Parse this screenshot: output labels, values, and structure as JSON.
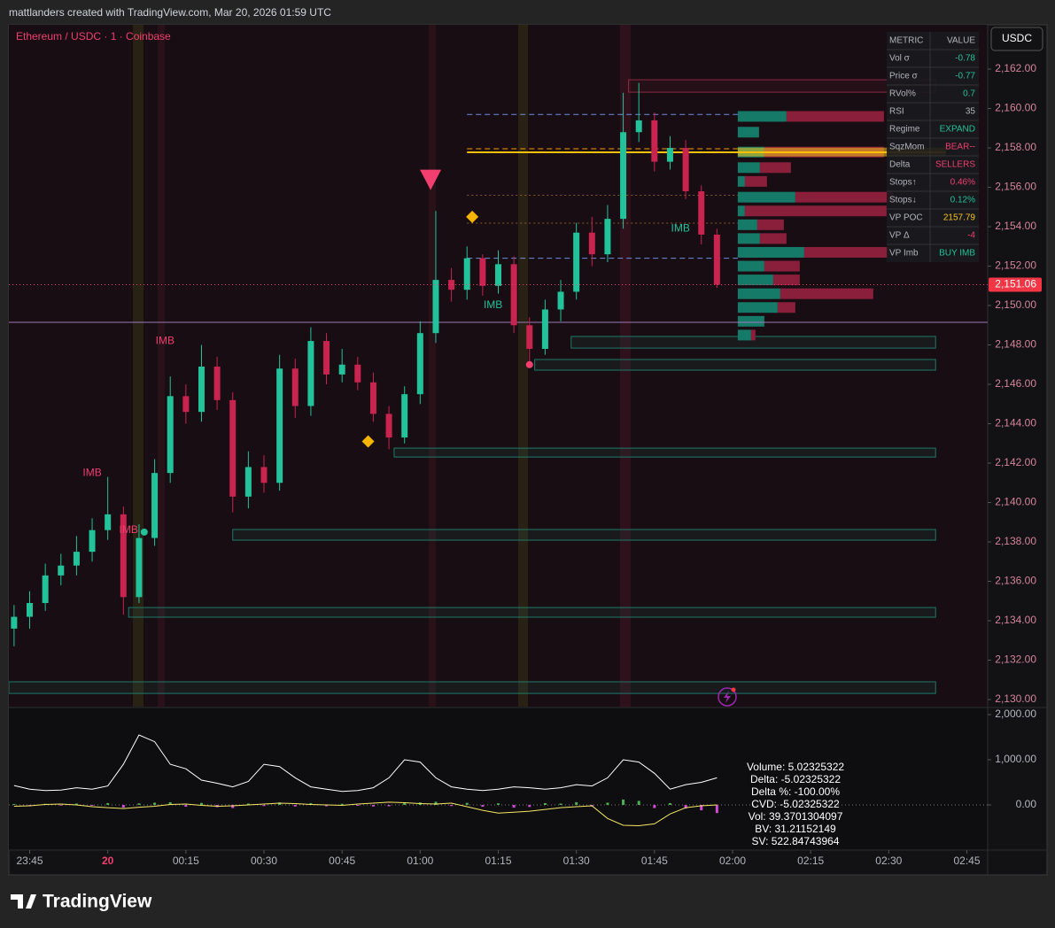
{
  "header": {
    "attribution": "mattlanders created with TradingView.com, Mar 20, 2026 01:59 UTC",
    "symbol": "Ethereum / USDC · 1 · Coinbase",
    "currency": "USDC",
    "logo": "TradingView"
  },
  "chart_data": [
    {
      "type": "candlestick",
      "x": [
        "23:42",
        "23:45",
        "23:48",
        "23:51",
        "23:54",
        "23:57",
        "00:00",
        "00:03",
        "00:06",
        "00:09",
        "00:12",
        "00:15",
        "00:18",
        "00:21",
        "00:24",
        "00:27",
        "00:30",
        "00:33",
        "00:36",
        "00:39",
        "00:42",
        "00:45",
        "00:48",
        "00:51",
        "00:54",
        "00:57",
        "01:00",
        "01:03",
        "01:06",
        "01:09",
        "01:12",
        "01:15",
        "01:18",
        "01:21",
        "01:24",
        "01:27",
        "01:30",
        "01:33",
        "01:36",
        "01:39",
        "01:42",
        "01:45",
        "01:48",
        "01:51",
        "01:54",
        "01:57"
      ],
      "open": [
        2133.6,
        2134.2,
        2134.9,
        2136.3,
        2136.8,
        2137.5,
        2138.6,
        2139.4,
        2135.2,
        2138.2,
        2141.5,
        2145.4,
        2144.6,
        2146.9,
        2145.2,
        2140.3,
        2141.8,
        2141.0,
        2146.8,
        2144.9,
        2148.2,
        2146.5,
        2147.0,
        2146.1,
        2144.5,
        2143.3,
        2145.5,
        2148.6,
        2151.3,
        2150.8,
        2152.4,
        2151.0,
        2152.1,
        2149.0,
        2147.8,
        2149.8,
        2150.7,
        2153.7,
        2152.6,
        2154.4,
        2158.8,
        2159.4,
        2157.3,
        2158.0,
        2155.8,
        2153.6
      ],
      "high": [
        2134.8,
        2135.5,
        2136.9,
        2137.4,
        2138.3,
        2139.2,
        2141.3,
        2139.8,
        2138.9,
        2142.2,
        2146.4,
        2146.0,
        2148.0,
        2147.4,
        2145.6,
        2142.6,
        2142.4,
        2147.5,
        2147.3,
        2148.9,
        2148.6,
        2147.8,
        2147.4,
        2146.6,
        2144.9,
        2145.9,
        2149.2,
        2154.8,
        2151.9,
        2153.0,
        2152.6,
        2152.8,
        2152.5,
        2149.4,
        2150.3,
        2151.3,
        2154.2,
        2154.5,
        2155.1,
        2160.8,
        2161.3,
        2159.8,
        2158.6,
        2158.4,
        2156.1,
        2153.9
      ],
      "low": [
        2132.7,
        2133.6,
        2134.5,
        2135.8,
        2136.3,
        2137.0,
        2138.1,
        2134.3,
        2134.9,
        2137.8,
        2141.0,
        2144.0,
        2144.1,
        2144.7,
        2139.5,
        2139.7,
        2140.5,
        2140.6,
        2144.3,
        2144.4,
        2146.0,
        2146.1,
        2145.7,
        2144.1,
        2142.7,
        2143.0,
        2145.0,
        2148.1,
        2150.2,
        2150.3,
        2150.5,
        2150.6,
        2148.6,
        2147.0,
        2147.5,
        2149.2,
        2150.3,
        2152.0,
        2152.2,
        2153.9,
        2158.3,
        2156.8,
        2156.9,
        2155.4,
        2153.1,
        2150.9
      ],
      "close": [
        2134.2,
        2134.9,
        2136.3,
        2136.8,
        2137.5,
        2138.6,
        2139.4,
        2135.2,
        2138.2,
        2141.5,
        2145.4,
        2144.6,
        2146.9,
        2145.2,
        2140.3,
        2141.8,
        2141.0,
        2146.8,
        2144.9,
        2148.2,
        2146.5,
        2147.0,
        2146.1,
        2144.5,
        2143.3,
        2145.5,
        2148.6,
        2151.3,
        2150.8,
        2152.4,
        2151.0,
        2152.1,
        2149.0,
        2147.8,
        2149.8,
        2150.7,
        2153.7,
        2152.6,
        2154.4,
        2158.8,
        2159.4,
        2157.3,
        2158.0,
        2155.8,
        2153.6,
        2151.06
      ],
      "up_color": "#22c29b",
      "down_color": "#c8244f",
      "last_label": "2,151.06",
      "xlim": [
        "23:41",
        "02:49"
      ],
      "xticks": [
        "23:45",
        {
          "value": "00:00",
          "label": "20"
        },
        "00:15",
        "00:30",
        "00:45",
        "01:00",
        "01:15",
        "01:30",
        "01:45",
        "02:00",
        "02:15",
        "02:30",
        "02:45"
      ],
      "ylim": [
        2129.64,
        2164.25
      ],
      "yticks": [
        {
          "value": 2130,
          "label": "2,130.00"
        },
        {
          "value": 2132,
          "label": "2,132.00"
        },
        {
          "value": 2134,
          "label": "2,134.00"
        },
        {
          "value": 2136,
          "label": "2,136.00"
        },
        {
          "value": 2138,
          "label": "2,138.00"
        },
        {
          "value": 2140,
          "label": "2,140.00"
        },
        {
          "value": 2142,
          "label": "2,142.00"
        },
        {
          "value": 2144,
          "label": "2,144.00"
        },
        {
          "value": 2146,
          "label": "2,146.00"
        },
        {
          "value": 2148,
          "label": "2,148.00"
        },
        {
          "value": 2150,
          "label": "2,150.00"
        },
        {
          "value": 2152,
          "label": "2,152.00"
        },
        {
          "value": 2154,
          "label": "2,154.00"
        },
        {
          "value": 2156,
          "label": "2,156.00"
        },
        {
          "value": 2158,
          "label": "2,158.00"
        },
        {
          "value": 2160,
          "label": "2,160.00"
        },
        {
          "value": 2162,
          "label": "2,162.00"
        }
      ],
      "zones": [
        {
          "top": 2161.46,
          "bottom": 2160.83,
          "from": "01:40",
          "to": "02:39",
          "color": "#8b2a44"
        },
        {
          "top": 2148.43,
          "bottom": 2147.84,
          "from": "01:29",
          "to": "02:39",
          "color": "#1f7a6a"
        },
        {
          "top": 2147.26,
          "bottom": 2146.72,
          "from": "01:22",
          "to": "02:39",
          "color": "#1f7a6a"
        },
        {
          "top": 2142.76,
          "bottom": 2142.31,
          "from": "00:55",
          "to": "02:39",
          "color": "#1f7a6a"
        },
        {
          "top": 2138.63,
          "bottom": 2138.09,
          "from": "00:24",
          "to": "02:39",
          "color": "#1f7a6a"
        },
        {
          "top": 2134.67,
          "bottom": 2134.18,
          "from": "00:04",
          "to": "02:39",
          "color": "#1f7a6a"
        },
        {
          "top": 2130.9,
          "bottom": 2130.31,
          "from": "23:41",
          "to": "02:39",
          "color": "#1f7a6a"
        }
      ],
      "levels": [
        {
          "price": 2159.7,
          "from": "01:09",
          "to": "02:01",
          "color": "#6f8fe0",
          "style": "dashed"
        },
        {
          "price": 2152.4,
          "from": "01:09",
          "to": "02:01",
          "color": "#6f8fe0",
          "style": "dashed"
        },
        {
          "price": 2157.96,
          "from": "01:09",
          "to": "02:01",
          "color": "#ff9800",
          "style": "dashed"
        },
        {
          "price": 2157.78,
          "from": "01:09",
          "to": "02:41",
          "color": "#ffc107",
          "style": "solid"
        },
        {
          "price": 2155.6,
          "from": "01:09",
          "to": "02:01",
          "color": "#8a5a2b",
          "style": "dotted"
        },
        {
          "price": 2154.18,
          "from": "01:09",
          "to": "02:01",
          "color": "#8a5a2b",
          "style": "dotted"
        },
        {
          "price": 2149.15,
          "from": "23:41",
          "to": "02:49",
          "color": "#9c7bb8",
          "style": "solid"
        }
      ],
      "markers": [
        {
          "shape": "triangle",
          "x": "01:02",
          "y": 2156.4,
          "color": "#f23f70"
        },
        {
          "shape": "diamond",
          "x": "01:10",
          "y": 2154.5,
          "color": "#f5b400"
        },
        {
          "shape": "diamond",
          "x": "00:50",
          "y": 2143.1,
          "color": "#f5b400"
        },
        {
          "shape": "dot",
          "x": "00:07",
          "y": 2138.5,
          "color": "#22c29b"
        },
        {
          "shape": "dot",
          "x": "01:21",
          "y": 2147.0,
          "color": "#f23f70"
        }
      ],
      "annotations": [
        {
          "text": "IMB",
          "x": "00:11",
          "y": 2148.2,
          "color": "#f23f70"
        },
        {
          "text": "IMB",
          "x": "23:57",
          "y": 2141.5,
          "color": "#f23f70"
        },
        {
          "text": "IMB",
          "x": "00:04",
          "y": 2138.6,
          "color": "#f23f70"
        },
        {
          "text": "IMB",
          "x": "01:14",
          "y": 2150.0,
          "color": "#22c29b"
        },
        {
          "text": "IMB",
          "x": "01:50",
          "y": 2153.9,
          "color": "#22c29b"
        }
      ],
      "volume_profile": {
        "from": "02:01",
        "prices": [
          2159.6,
          2158.8,
          2157.79,
          2157.0,
          2156.3,
          2155.5,
          2154.8,
          2154.1,
          2153.4,
          2152.7,
          2152.0,
          2151.3,
          2150.6,
          2149.9,
          2149.2,
          2148.5
        ],
        "buy": [
          55,
          24,
          30,
          25,
          8,
          65,
          8,
          22,
          25,
          75,
          30,
          40,
          48,
          45,
          30,
          15
        ],
        "sell": [
          110,
          0,
          135,
          35,
          25,
          110,
          160,
          30,
          30,
          95,
          40,
          30,
          105,
          20,
          0,
          5
        ],
        "buy_color": "#167a68",
        "sell_color": "#8a1f3c",
        "poc": 2157.79,
        "poc_color": "#f5c518"
      }
    },
    {
      "type": "line",
      "x": [
        "23:42",
        "23:45",
        "23:48",
        "23:51",
        "23:54",
        "23:57",
        "00:00",
        "00:03",
        "00:06",
        "00:09",
        "00:12",
        "00:15",
        "00:18",
        "00:21",
        "00:24",
        "00:27",
        "00:30",
        "00:33",
        "00:36",
        "00:39",
        "00:42",
        "00:45",
        "00:48",
        "00:51",
        "00:54",
        "00:57",
        "01:00",
        "01:03",
        "01:06",
        "01:09",
        "01:12",
        "01:15",
        "01:18",
        "01:21",
        "01:24",
        "01:27",
        "01:30",
        "01:33",
        "01:36",
        "01:39",
        "01:42",
        "01:45",
        "01:48",
        "01:51",
        "01:54",
        "01:57"
      ],
      "xlim": [
        "23:41",
        "02:49"
      ],
      "series": [
        {
          "color": "#ffffff",
          "values": [
            430,
            350,
            320,
            330,
            380,
            350,
            420,
            900,
            1550,
            1400,
            900,
            800,
            550,
            480,
            400,
            520,
            900,
            850,
            600,
            400,
            350,
            300,
            320,
            380,
            600,
            1000,
            950,
            600,
            400,
            350,
            320,
            350,
            400,
            380,
            350,
            380,
            450,
            420,
            600,
            1000,
            950,
            700,
            350,
            450,
            500,
            600
          ]
        },
        {
          "color": "#f5e663",
          "values": [
            -30,
            -20,
            10,
            20,
            0,
            -40,
            -60,
            -80,
            -50,
            -30,
            10,
            20,
            -10,
            -30,
            -20,
            0,
            20,
            40,
            30,
            10,
            0,
            -10,
            20,
            40,
            60,
            50,
            30,
            20,
            40,
            -40,
            -120,
            -180,
            -160,
            -140,
            -100,
            -60,
            -40,
            -20,
            -300,
            -450,
            -460,
            -420,
            -200,
            -60,
            -20,
            0
          ]
        }
      ],
      "histogram": {
        "values": [
          20,
          -30,
          25,
          -15,
          30,
          -20,
          40,
          -60,
          35,
          50,
          60,
          -40,
          45,
          -50,
          -70,
          30,
          -25,
          55,
          -35,
          40,
          -30,
          25,
          -20,
          -35,
          -30,
          40,
          55,
          70,
          -25,
          45,
          -40,
          35,
          -60,
          -45,
          40,
          30,
          60,
          -35,
          50,
          120,
          90,
          -70,
          40,
          -80,
          -120,
          -180
        ],
        "up_color": "#4caf50",
        "down_color": "#d04ad8"
      },
      "ylim": [
        -1000,
        2157
      ],
      "yticks": [
        {
          "value": 0,
          "label": "0.00"
        },
        {
          "value": 1000,
          "label": "1,000.00"
        },
        {
          "value": 2000,
          "label": "2,000.00"
        }
      ],
      "zero_line": true
    }
  ],
  "table": {
    "header": [
      "METRIC",
      "VALUE"
    ],
    "rows": [
      [
        "Vol σ",
        "-0.78"
      ],
      [
        "Price σ",
        "-0.77"
      ],
      [
        "RVol%",
        "0.7"
      ],
      [
        "RSI",
        "35"
      ],
      [
        "Regime",
        "EXPAND"
      ],
      [
        "SqzMom",
        "BEAR--"
      ],
      [
        "Delta",
        "SELLERS"
      ],
      [
        "Stops↑",
        "0.46%"
      ],
      [
        "Stops↓",
        "0.12%"
      ],
      [
        "VP POC",
        "2157.79"
      ],
      [
        "VP Δ",
        "-4"
      ],
      [
        "VP Imb",
        "BUY IMB"
      ]
    ],
    "colors": [
      "#22c29b",
      "#22c29b",
      "#22c29b",
      "#b2b5be",
      "#22c29b",
      "#f23f70",
      "#f23f70",
      "#f23f70",
      "#22c29b",
      "#f5c518",
      "#f23f70",
      "#22c29b"
    ]
  },
  "info_box": {
    "lines": [
      "Volume: 5.02325322",
      "Delta: -5.02325322",
      "Delta %: -100.00%",
      "CVD: -5.02325322",
      "Vol: 39.3701304097",
      "BV: 31.21152149",
      "SV: 522.84743964"
    ]
  }
}
